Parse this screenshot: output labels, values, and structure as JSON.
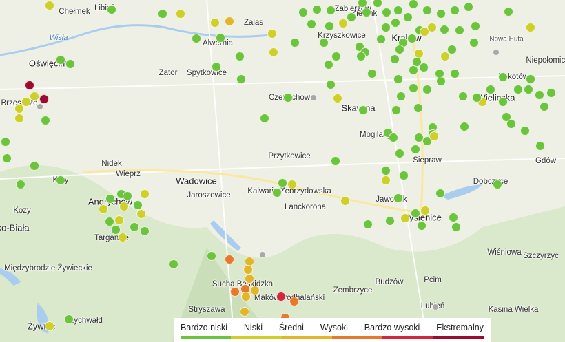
{
  "map": {
    "places": [
      "Chełmek",
      "Libiąż",
      "Oświęcim",
      "Wisła",
      "Alwernia",
      "Zalas",
      "Zator",
      "Spytkowice",
      "Czernichów",
      "Krzyszkowice",
      "Skawina",
      "Kraków",
      "Nowa Huta",
      "Niepołomice",
      "Kokotów",
      "Wieliczka",
      "Mogilany",
      "Siepraw",
      "Gdów",
      "Dobczyce",
      "Brzeszcze",
      "Kęty",
      "Nidek",
      "Wieprz",
      "Andrychów",
      "Kozy",
      "Bielsko-Biała",
      "Targanice",
      "Wadowice",
      "Jaroszowice",
      "Przytkowice",
      "Kalwaria Zebrzydowska",
      "Lanckorona",
      "Jawornik",
      "Myślenice",
      "Wiśniowa",
      "Szczyrzyc",
      "Międzybrodzie Żywieckie",
      "Sucha Beskidzka",
      "Maków Podhalański",
      "Stryszawa",
      "Pcim",
      "Zembrzyce",
      "Budzów",
      "Lubień",
      "Kasina Wielka",
      "Żywiec",
      "Rychwałd",
      "Zabierzów",
      "Zielonki"
    ],
    "marker_levels_colors": {
      "bardzo_niski": "#6cc43c",
      "niski": "#cfcf2a",
      "sredni": "#e3b529",
      "wysoki": "#e8782a",
      "bardzo_wysoki": "#d6263d",
      "ekstremalny": "#9b0b2d",
      "brak": "#a8a8a8"
    }
  },
  "legend": {
    "items": [
      {
        "label": "Bardzo niski",
        "color": "#6cc43c"
      },
      {
        "label": "Niski",
        "color": "#cfcf2a"
      },
      {
        "label": "Średni",
        "color": "#e3b529"
      },
      {
        "label": "Wysoki",
        "color": "#e8782a"
      },
      {
        "label": "Bardzo wysoki",
        "color": "#d6263d"
      },
      {
        "label": "Ekstremalny",
        "color": "#9b0b2d"
      }
    ]
  }
}
